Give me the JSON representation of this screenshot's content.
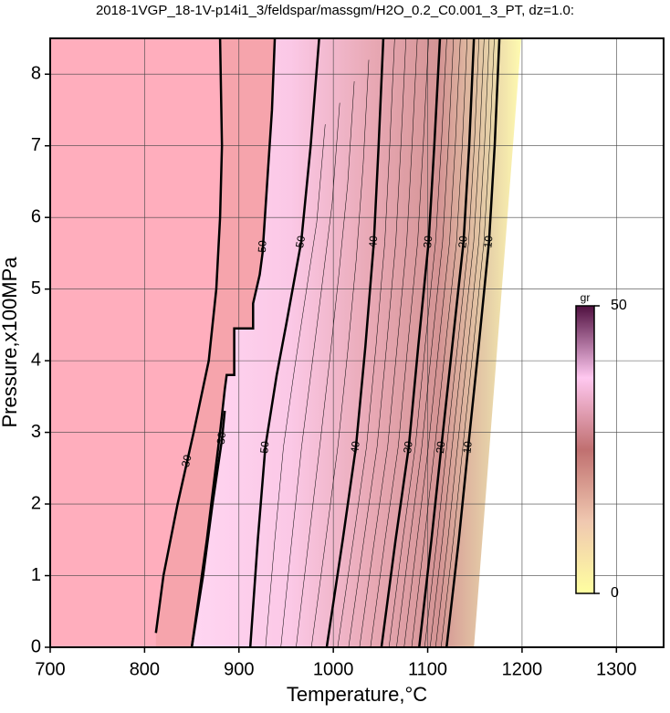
{
  "chart_data": {
    "type": "contour",
    "title": "2018-1VGP_18-1V-p14i1_3/feldspar/massgm/H2O_0.2_C0.001_3_PT, dz=1.0:",
    "x_label": "Temperature,°C",
    "y_label": "Pressure,x100MPa",
    "xlim": [
      700,
      1350
    ],
    "ylim": [
      0,
      8.5
    ],
    "xticks": [
      700,
      800,
      900,
      1000,
      1100,
      1200,
      1300
    ],
    "yticks": [
      0,
      1,
      2,
      3,
      4,
      5,
      6,
      7,
      8
    ],
    "grid": true,
    "series": [
      {
        "name": "30",
        "color": "#000000",
        "x": [
          812,
          820,
          835,
          852,
          868,
          876,
          880,
          882,
          880
        ],
        "values": [
          0.2,
          1,
          2,
          3,
          4,
          5,
          6,
          7,
          8.5
        ]
      },
      {
        "name": "30",
        "color": "#000000",
        "x": [
          850,
          862,
          872,
          882,
          885
        ],
        "values": [
          0,
          1,
          2,
          2.9,
          3.3
        ]
      },
      {
        "name": "50",
        "color": "#000000",
        "x": [
          850,
          866,
          880,
          885,
          887,
          895,
          895,
          915,
          915,
          922,
          925,
          930,
          935,
          938
        ],
        "values": [
          0,
          1.5,
          3,
          3.6,
          3.8,
          3.8,
          4.45,
          4.45,
          4.8,
          5.2,
          5.5,
          6.5,
          7.5,
          8.5
        ]
      },
      {
        "name": "50",
        "color": "#000000",
        "x": [
          912,
          920,
          928,
          940,
          950,
          966,
          976,
          985
        ],
        "values": [
          0,
          1.5,
          2.8,
          3.8,
          4.5,
          5.66,
          7,
          8.5
        ]
      },
      {
        "name": "40",
        "color": "#000000",
        "x": [
          993,
          1010,
          1024,
          1034,
          1043,
          1048,
          1053
        ],
        "values": [
          0,
          1.5,
          2.8,
          4.2,
          5.66,
          7,
          8.5
        ]
      },
      {
        "name": "30",
        "color": "#000000",
        "x": [
          1051,
          1066,
          1080,
          1090,
          1101,
          1107,
          1113
        ],
        "values": [
          0,
          1.5,
          2.8,
          4.2,
          5.66,
          7,
          8.5
        ]
      },
      {
        "name": "20",
        "color": "#000000",
        "x": [
          1091,
          1104,
          1114.5,
          1126,
          1138,
          1144,
          1149
        ],
        "values": [
          0,
          1.5,
          2.8,
          4.2,
          5.66,
          7,
          8.5
        ]
      },
      {
        "name": "10",
        "color": "#000000",
        "x": [
          1120,
          1133,
          1143,
          1154,
          1165,
          1171,
          1176
        ],
        "values": [
          0,
          1.5,
          2.8,
          4.2,
          5.66,
          7,
          8.5
        ]
      }
    ],
    "colorbar": {
      "label": "gr",
      "clim": [
        0,
        50
      ],
      "ticks": [
        0,
        50
      ],
      "colors": [
        "#ffffa0",
        "#f0c8b0",
        "#c07070",
        "#ffc8f0",
        "#501040"
      ]
    }
  }
}
